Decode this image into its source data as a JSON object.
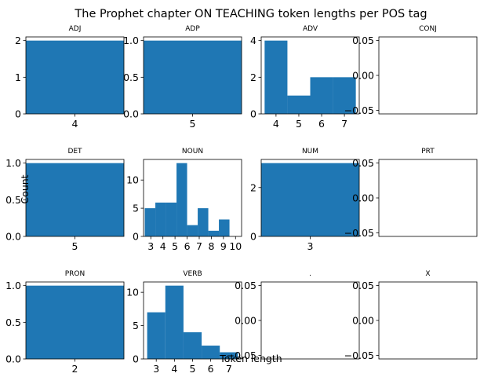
{
  "figure": {
    "title": "The Prophet chapter ON TEACHING token lengths per POS tag",
    "xlabel": "Token length",
    "ylabel": "Count",
    "bar_color": "#1f77b4"
  },
  "chart_data": [
    {
      "type": "bar",
      "title": "ADJ",
      "bins": [
        [
          3.5,
          4.5
        ]
      ],
      "values": [
        2
      ],
      "xlim": [
        3.5,
        4.5
      ],
      "ylim": [
        0,
        2.1
      ],
      "xticks": [
        4
      ],
      "yticks": [
        0,
        1,
        2
      ],
      "ytick_labels": [
        "0",
        "1",
        "2"
      ]
    },
    {
      "type": "bar",
      "title": "ADP",
      "bins": [
        [
          4.5,
          5.5
        ]
      ],
      "values": [
        1
      ],
      "xlim": [
        4.5,
        5.5
      ],
      "ylim": [
        0,
        1.05
      ],
      "xticks": [
        5
      ],
      "yticks": [
        0,
        0.5,
        1
      ],
      "ytick_labels": [
        "0.0",
        "0.5",
        "1.0"
      ]
    },
    {
      "type": "bar",
      "title": "ADV",
      "bins": [
        [
          3.5,
          4.5
        ],
        [
          4.5,
          5.5
        ],
        [
          5.5,
          6.5
        ],
        [
          6.5,
          7.5
        ]
      ],
      "values": [
        4,
        1,
        2,
        2
      ],
      "xlim": [
        3.35,
        7.65
      ],
      "ylim": [
        0,
        4.2
      ],
      "xticks": [
        4,
        5,
        6,
        7
      ],
      "yticks": [
        0,
        2,
        4
      ],
      "ytick_labels": [
        "0",
        "2",
        "4"
      ]
    },
    {
      "type": "bar",
      "title": "CONJ",
      "bins": [],
      "values": [],
      "xlim": [
        0,
        1
      ],
      "ylim": [
        -0.055,
        0.055
      ],
      "xticks": [],
      "yticks": [
        -0.05,
        0,
        0.05
      ],
      "ytick_labels": [
        "−0.05",
        "0.00",
        "0.05"
      ]
    },
    {
      "type": "bar",
      "title": "DET",
      "bins": [
        [
          4.5,
          5.5
        ]
      ],
      "values": [
        1
      ],
      "xlim": [
        4.5,
        5.5
      ],
      "ylim": [
        0,
        1.05
      ],
      "xticks": [
        5
      ],
      "yticks": [
        0,
        0.5,
        1
      ],
      "ytick_labels": [
        "0.0",
        "0.5",
        "1.0"
      ]
    },
    {
      "type": "bar",
      "title": "NOUN",
      "bins": [
        [
          2.5,
          3.375
        ],
        [
          3.375,
          4.25
        ],
        [
          4.25,
          5.125
        ],
        [
          5.125,
          6.0
        ],
        [
          6.0,
          6.875
        ],
        [
          6.875,
          7.75
        ],
        [
          7.75,
          8.625
        ],
        [
          8.625,
          9.5
        ],
        [
          9.5,
          10.375
        ]
      ],
      "values": [
        5,
        6,
        6,
        13,
        2,
        5,
        1,
        3,
        0
      ],
      "xlim": [
        2.4,
        10.5
      ],
      "ylim": [
        0,
        13.65
      ],
      "xticks": [
        3,
        4,
        5,
        6,
        7,
        8,
        9,
        10
      ],
      "yticks": [
        0,
        5,
        10
      ],
      "ytick_labels": [
        "0",
        "5",
        "10"
      ]
    },
    {
      "type": "bar",
      "title": "NUM",
      "bins": [
        [
          2.5,
          3.5
        ]
      ],
      "values": [
        3
      ],
      "xlim": [
        2.5,
        3.5
      ],
      "ylim": [
        0,
        3.15
      ],
      "xticks": [
        3
      ],
      "yticks": [
        0,
        2
      ],
      "ytick_labels": [
        "0",
        "2"
      ]
    },
    {
      "type": "bar",
      "title": "PRT",
      "bins": [],
      "values": [],
      "xlim": [
        0,
        1
      ],
      "ylim": [
        -0.055,
        0.055
      ],
      "xticks": [],
      "yticks": [
        -0.05,
        0,
        0.05
      ],
      "ytick_labels": [
        "−0.05",
        "0.00",
        "0.05"
      ]
    },
    {
      "type": "bar",
      "title": "PRON",
      "bins": [
        [
          1.5,
          2.5
        ]
      ],
      "values": [
        1
      ],
      "xlim": [
        1.5,
        2.5
      ],
      "ylim": [
        0,
        1.05
      ],
      "xticks": [
        2
      ],
      "yticks": [
        0,
        0.5,
        1
      ],
      "ytick_labels": [
        "0.0",
        "0.5",
        "1.0"
      ]
    },
    {
      "type": "bar",
      "title": "VERB",
      "bins": [
        [
          2.5,
          3.5
        ],
        [
          3.5,
          4.5
        ],
        [
          4.5,
          5.5
        ],
        [
          5.5,
          6.5
        ],
        [
          6.5,
          7.5
        ]
      ],
      "values": [
        7,
        11,
        4,
        2,
        1
      ],
      "xlim": [
        2.3,
        7.7
      ],
      "ylim": [
        0,
        11.55
      ],
      "xticks": [
        3,
        4,
        5,
        6,
        7
      ],
      "yticks": [
        0,
        5,
        10
      ],
      "ytick_labels": [
        "0",
        "5",
        "10"
      ]
    },
    {
      "type": "bar",
      "title": ".",
      "bins": [],
      "values": [],
      "xlim": [
        0,
        1
      ],
      "ylim": [
        -0.055,
        0.055
      ],
      "xticks": [],
      "yticks": [
        -0.05,
        0,
        0.05
      ],
      "ytick_labels": [
        "−0.05",
        "0.00",
        "0.05"
      ]
    },
    {
      "type": "bar",
      "title": "X",
      "bins": [],
      "values": [],
      "xlim": [
        0,
        1
      ],
      "ylim": [
        -0.055,
        0.055
      ],
      "xticks": [],
      "yticks": [
        -0.05,
        0,
        0.05
      ],
      "ytick_labels": [
        "−0.05",
        "0.00",
        "0.05"
      ]
    }
  ]
}
